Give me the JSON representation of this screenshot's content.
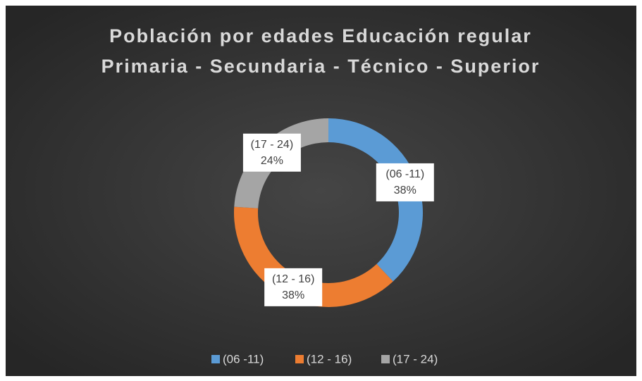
{
  "chart_data": {
    "type": "donut",
    "title": [
      "Población por edades Educación regular",
      "Primaria - Secundaria - Técnico - Superior"
    ],
    "categories": [
      "(06 -11)",
      "(12 - 16)",
      "(17 - 24)"
    ],
    "values": [
      38,
      38,
      24
    ],
    "value_labels": [
      "38%",
      "38%",
      "24%"
    ],
    "colors": [
      "#5b9bd5",
      "#ed7d31",
      "#a5a5a5"
    ],
    "legend": "bottom"
  }
}
